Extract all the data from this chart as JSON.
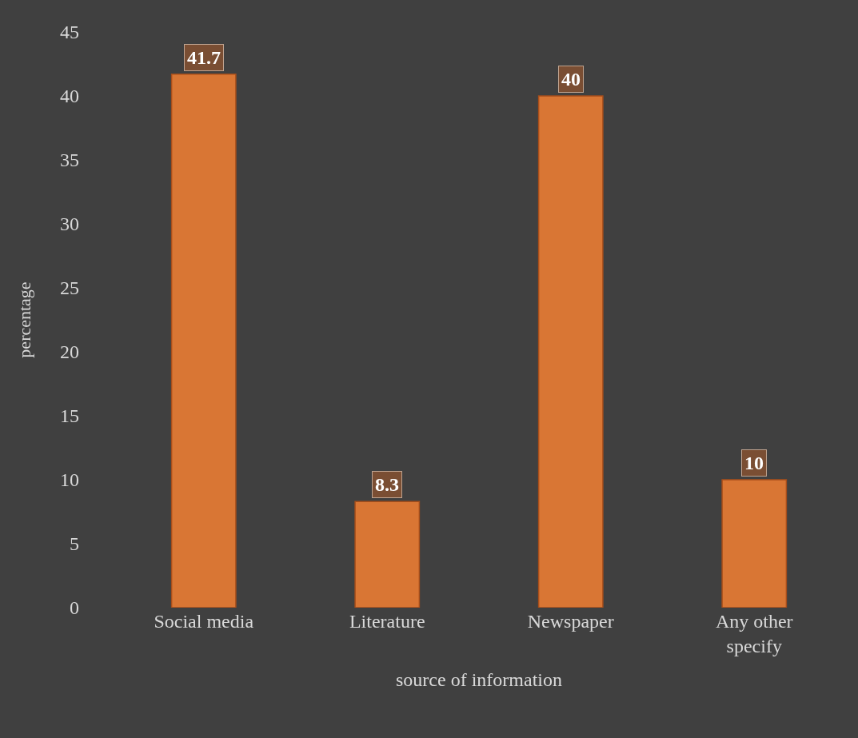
{
  "chart_data": {
    "type": "bar",
    "xlabel": "source of information",
    "ylabel": "percentage",
    "categories": [
      "Social media",
      "Literature",
      "Newspaper",
      "Any other specify"
    ],
    "values": [
      41.7,
      8.3,
      40,
      10
    ],
    "color": "#d97634",
    "ylim": [
      0,
      45
    ],
    "yticks": [
      0,
      5,
      10,
      15,
      20,
      25,
      30,
      35,
      40,
      45
    ],
    "grid": false,
    "legend": false,
    "data_labels": true
  }
}
